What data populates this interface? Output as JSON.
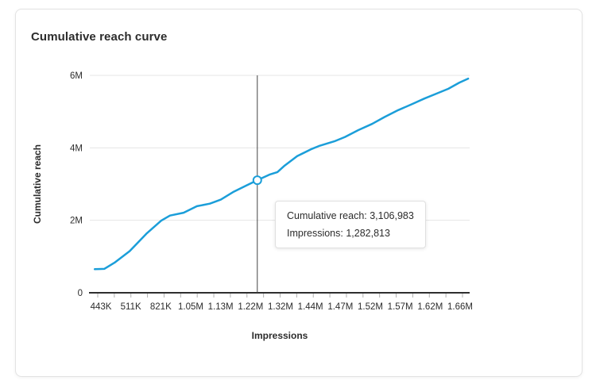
{
  "card": {
    "title": "Cumulative reach curve"
  },
  "tooltip": {
    "line1": "Cumulative reach: 3,106,983",
    "line2": "Impressions: 1,282,813"
  },
  "chart_style": {
    "line_color": "#1b9ed9",
    "grid_color": "#e4e4e4",
    "axis_color": "#2f2f2f",
    "tick_color": "#b0b0b0",
    "text_color": "#2c2c2c",
    "crosshair_color": "#444444",
    "tooltip_border": "#e0e0e0",
    "card_border": "#e3e3e3"
  },
  "chart_data": {
    "type": "line",
    "title": "Cumulative reach curve",
    "xlabel": "Impressions",
    "ylabel": "Cumulative reach",
    "categories": [
      "443K",
      "511K",
      "821K",
      "1.05M",
      "1.13M",
      "1.22M",
      "1.32M",
      "1.44M",
      "1.47M",
      "1.52M",
      "1.57M",
      "1.62M",
      "1.66M"
    ],
    "values": [
      0.66,
      1.18,
      1.98,
      2.3,
      2.57,
      3.01,
      3.41,
      3.95,
      4.28,
      4.64,
      5.07,
      5.42,
      5.81
    ],
    "values_unit": "millions of cumulative reach",
    "y_ticks": [
      {
        "label": "0",
        "value": 0
      },
      {
        "label": "2M",
        "value": 2
      },
      {
        "label": "4M",
        "value": 4
      },
      {
        "label": "6M",
        "value": 6
      }
    ],
    "ylim": [
      0,
      6
    ],
    "grid": true,
    "legend": false,
    "highlight": {
      "cumulative_reach": 3106983,
      "impressions": 1282813,
      "x_frac": 0.441,
      "reach_millions": 3.107
    },
    "curve_points": [
      [
        0.013,
        0.65
      ],
      [
        0.038,
        0.66
      ],
      [
        0.065,
        0.83
      ],
      [
        0.105,
        1.15
      ],
      [
        0.149,
        1.63
      ],
      [
        0.188,
        1.99
      ],
      [
        0.211,
        2.13
      ],
      [
        0.247,
        2.21
      ],
      [
        0.282,
        2.39
      ],
      [
        0.316,
        2.46
      ],
      [
        0.345,
        2.57
      ],
      [
        0.379,
        2.79
      ],
      [
        0.414,
        2.97
      ],
      [
        0.441,
        3.107
      ],
      [
        0.473,
        3.26
      ],
      [
        0.494,
        3.33
      ],
      [
        0.513,
        3.51
      ],
      [
        0.546,
        3.77
      ],
      [
        0.582,
        3.96
      ],
      [
        0.603,
        4.05
      ],
      [
        0.644,
        4.18
      ],
      [
        0.672,
        4.3
      ],
      [
        0.707,
        4.49
      ],
      [
        0.743,
        4.66
      ],
      [
        0.776,
        4.85
      ],
      [
        0.812,
        5.04
      ],
      [
        0.847,
        5.2
      ],
      [
        0.881,
        5.36
      ],
      [
        0.916,
        5.51
      ],
      [
        0.944,
        5.63
      ],
      [
        0.973,
        5.8
      ],
      [
        0.996,
        5.91
      ]
    ]
  }
}
